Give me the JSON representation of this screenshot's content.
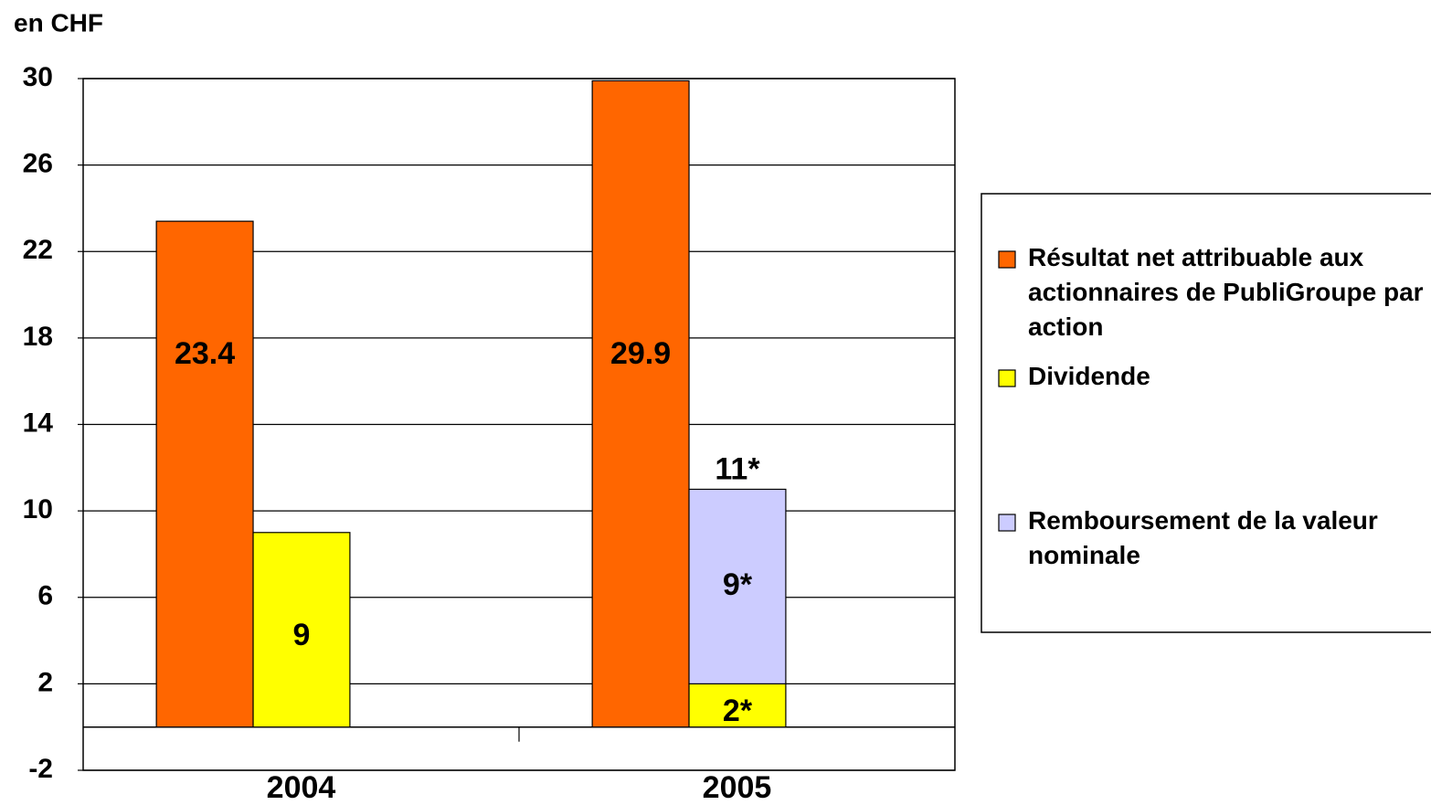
{
  "chart_data": {
    "type": "bar",
    "y_label": "en CHF",
    "categories": [
      "2004",
      "2005"
    ],
    "series": [
      {
        "name": "Résultat net attribuable aux actionnaires de PubliGroupe par action",
        "color": "#ff6600",
        "values": [
          23.4,
          29.9
        ]
      },
      {
        "name": "Dividende",
        "color": "#ffff00",
        "values": [
          9,
          2
        ],
        "value_labels": [
          "9",
          "2*"
        ]
      },
      {
        "name": "Remboursement de la valeur nominale",
        "color": "#ccccff",
        "values": [
          null,
          9
        ],
        "value_labels": [
          null,
          "9*"
        ],
        "stacked_on": "Dividende"
      }
    ],
    "annotations": [
      "11*"
    ],
    "ylim": [
      -2,
      30
    ],
    "yticks": [
      -2,
      2,
      6,
      10,
      14,
      18,
      22,
      26,
      30
    ],
    "grid": true,
    "legend": "right"
  }
}
